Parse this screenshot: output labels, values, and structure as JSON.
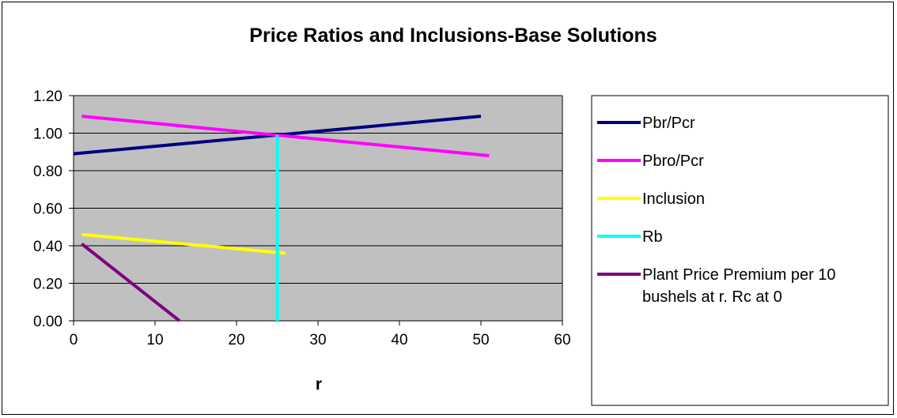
{
  "chart_data": {
    "type": "line",
    "title": "Price Ratios and Inclusions-Base Solutions",
    "xlabel": "r",
    "ylabel": "",
    "xlim": [
      0,
      60
    ],
    "ylim": [
      0,
      1.2
    ],
    "x_ticks": [
      "0",
      "10",
      "20",
      "30",
      "40",
      "50",
      "60"
    ],
    "y_ticks": [
      "0.00",
      "0.20",
      "0.40",
      "0.60",
      "0.80",
      "1.00",
      "1.20"
    ],
    "grid": "horizontal",
    "plot_background": "#c0c0c0",
    "legend_position": "right",
    "series": [
      {
        "name": "Pbr/Pcr",
        "color": "#000080",
        "x": [
          0,
          50
        ],
        "y": [
          0.89,
          1.09
        ]
      },
      {
        "name": "Pbro/Pcr",
        "color": "#ff00ff",
        "x": [
          1,
          51
        ],
        "y": [
          1.09,
          0.88
        ]
      },
      {
        "name": "Inclusion",
        "color": "#ffff00",
        "x": [
          1,
          26
        ],
        "y": [
          0.46,
          0.36
        ]
      },
      {
        "name": "Rb",
        "color": "#00ffff",
        "x": [
          25,
          25
        ],
        "y": [
          0.0,
          0.99
        ]
      },
      {
        "name": "Plant Price Premium per 10 bushels at r.  Rc at 0",
        "color": "#800080",
        "x": [
          1,
          13
        ],
        "y": [
          0.41,
          0.0
        ]
      }
    ]
  }
}
